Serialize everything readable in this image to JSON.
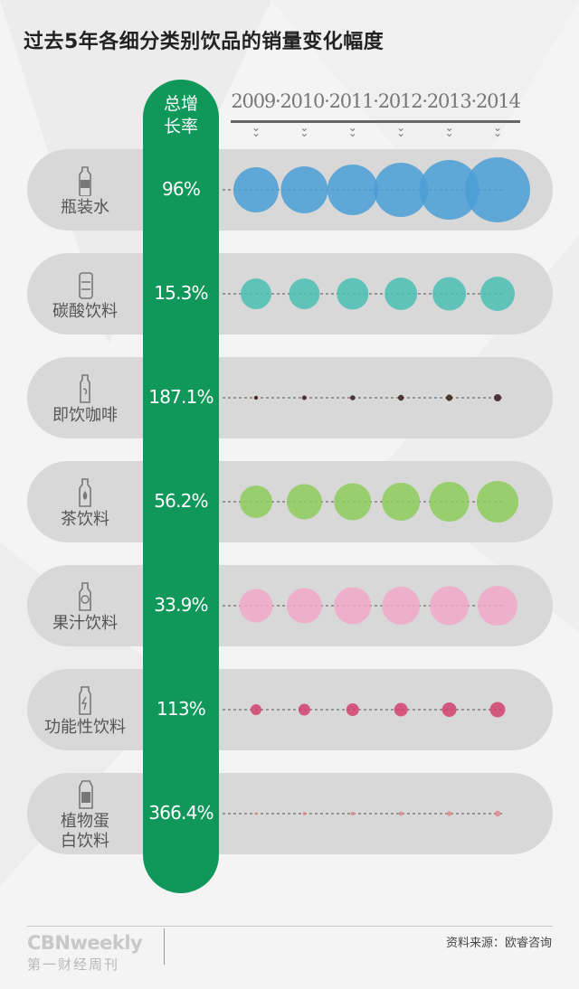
{
  "title": "过去5年各细分类别饮品的销量变化幅度",
  "header": {
    "growth_label": "总增\n长率",
    "years_label": "2009·2010·2011·2012·2013·2014"
  },
  "colors": {
    "pillar": "#10975a",
    "row_bg": "#d8d8d8",
    "bottled_water": "#4a9fd6",
    "carbonated": "#4bbfb5",
    "coffee": "#3a1a14",
    "tea": "#8dcc5b",
    "juice": "#f2a8c8",
    "functional": "#d2416e",
    "plant_protein": "#e08a8a"
  },
  "chart_data": {
    "type": "scatter",
    "title": "过去5年各细分类别饮品的销量变化幅度",
    "x": [
      "2009",
      "2010",
      "2011",
      "2012",
      "2013",
      "2014"
    ],
    "encoding": "circle area encodes relative sales volume; values are relative bubble sizes estimated from the picture",
    "series": [
      {
        "name": "瓶装水",
        "growth": "96%",
        "color": "#4a9fd6",
        "icon": "water-bottle-icon",
        "values": [
          25,
          26,
          28,
          30,
          33,
          36
        ]
      },
      {
        "name": "碳酸饮料",
        "growth": "15.3%",
        "color": "#4bbfb5",
        "icon": "soda-can-icon",
        "values": [
          17,
          17,
          17.5,
          18,
          18.5,
          19
        ]
      },
      {
        "name": "即饮咖啡",
        "growth": "187.1%",
        "color": "#3a1a14",
        "icon": "coffee-bottle-icon",
        "values": [
          2.2,
          2.5,
          2.8,
          3.2,
          3.6,
          4
        ]
      },
      {
        "name": "茶饮料",
        "growth": "56.2%",
        "color": "#8dcc5b",
        "icon": "tea-bottle-icon",
        "values": [
          18,
          19.5,
          20.5,
          21,
          22,
          23
        ]
      },
      {
        "name": "果汁饮料",
        "growth": "33.9%",
        "color": "#f2a8c8",
        "icon": "juice-bottle-icon",
        "values": [
          18.5,
          19.5,
          20.5,
          21,
          21.5,
          22
        ]
      },
      {
        "name": "功能性饮料",
        "growth": "113%",
        "color": "#d2416e",
        "icon": "sports-bottle-icon",
        "values": [
          6,
          6.5,
          7,
          7.5,
          8,
          8.5
        ]
      },
      {
        "name": "植物蛋\n白饮料",
        "growth": "366.4%",
        "color": "#e08a8a",
        "icon": "carton-icon",
        "values": [
          1.5,
          1.8,
          2.1,
          2.4,
          2.7,
          3.2
        ]
      }
    ]
  },
  "footer": {
    "brand": "CBNweekly",
    "brand_sub": "第一财经周刊",
    "source": "资料来源：欧睿咨询"
  }
}
